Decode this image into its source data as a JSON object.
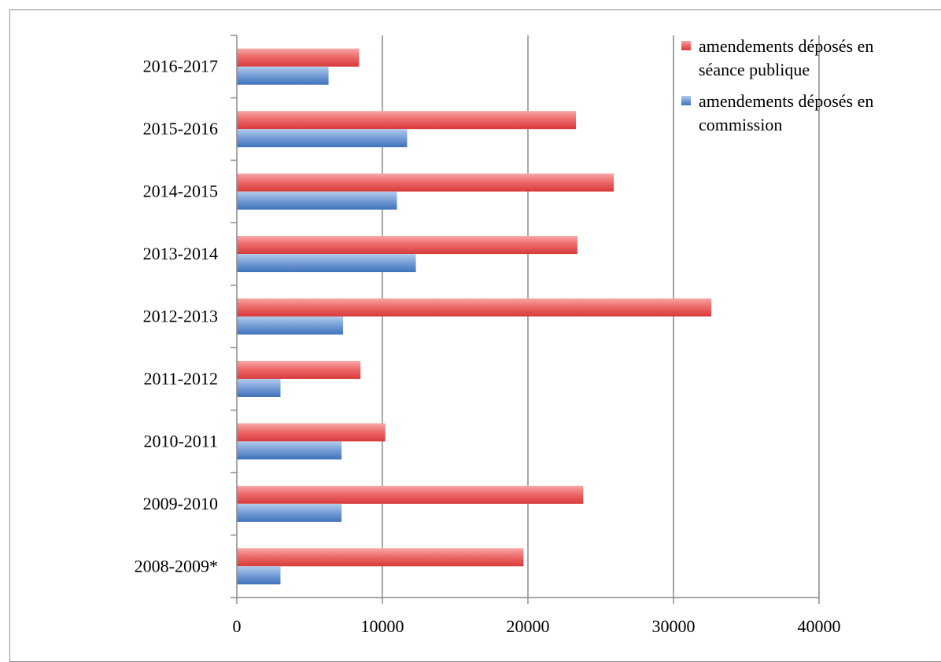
{
  "chart_data": {
    "type": "bar",
    "orientation": "horizontal",
    "title": "",
    "xlabel": "",
    "ylabel": "",
    "categories": [
      "2016-2017",
      "2015-2016",
      "2014-2015",
      "2013-2014",
      "2012-2013",
      "2011-2012",
      "2010-2011",
      "2009-2010",
      "2008-2009*"
    ],
    "series": [
      {
        "name": "amendements déposés en séance publique",
        "legend_lines": [
          "amendements déposés en",
          "séance publique"
        ],
        "color": "#e04848",
        "color_light": "#f5a3a3",
        "values": [
          8400,
          23300,
          25900,
          23400,
          32600,
          8500,
          10200,
          23800,
          19700
        ]
      },
      {
        "name": "amendements déposés en commission",
        "legend_lines": [
          "amendements déposés en",
          "commission"
        ],
        "color": "#4a7fc4",
        "color_light": "#a9c4e8",
        "values": [
          6300,
          11700,
          11000,
          12300,
          7300,
          3000,
          7200,
          7200,
          3000
        ]
      }
    ],
    "x_ticks": [
      "0",
      "10000",
      "20000",
      "30000",
      "40000"
    ],
    "xlim": [
      0,
      40000
    ],
    "grid": true,
    "legend_position": "top-right"
  }
}
